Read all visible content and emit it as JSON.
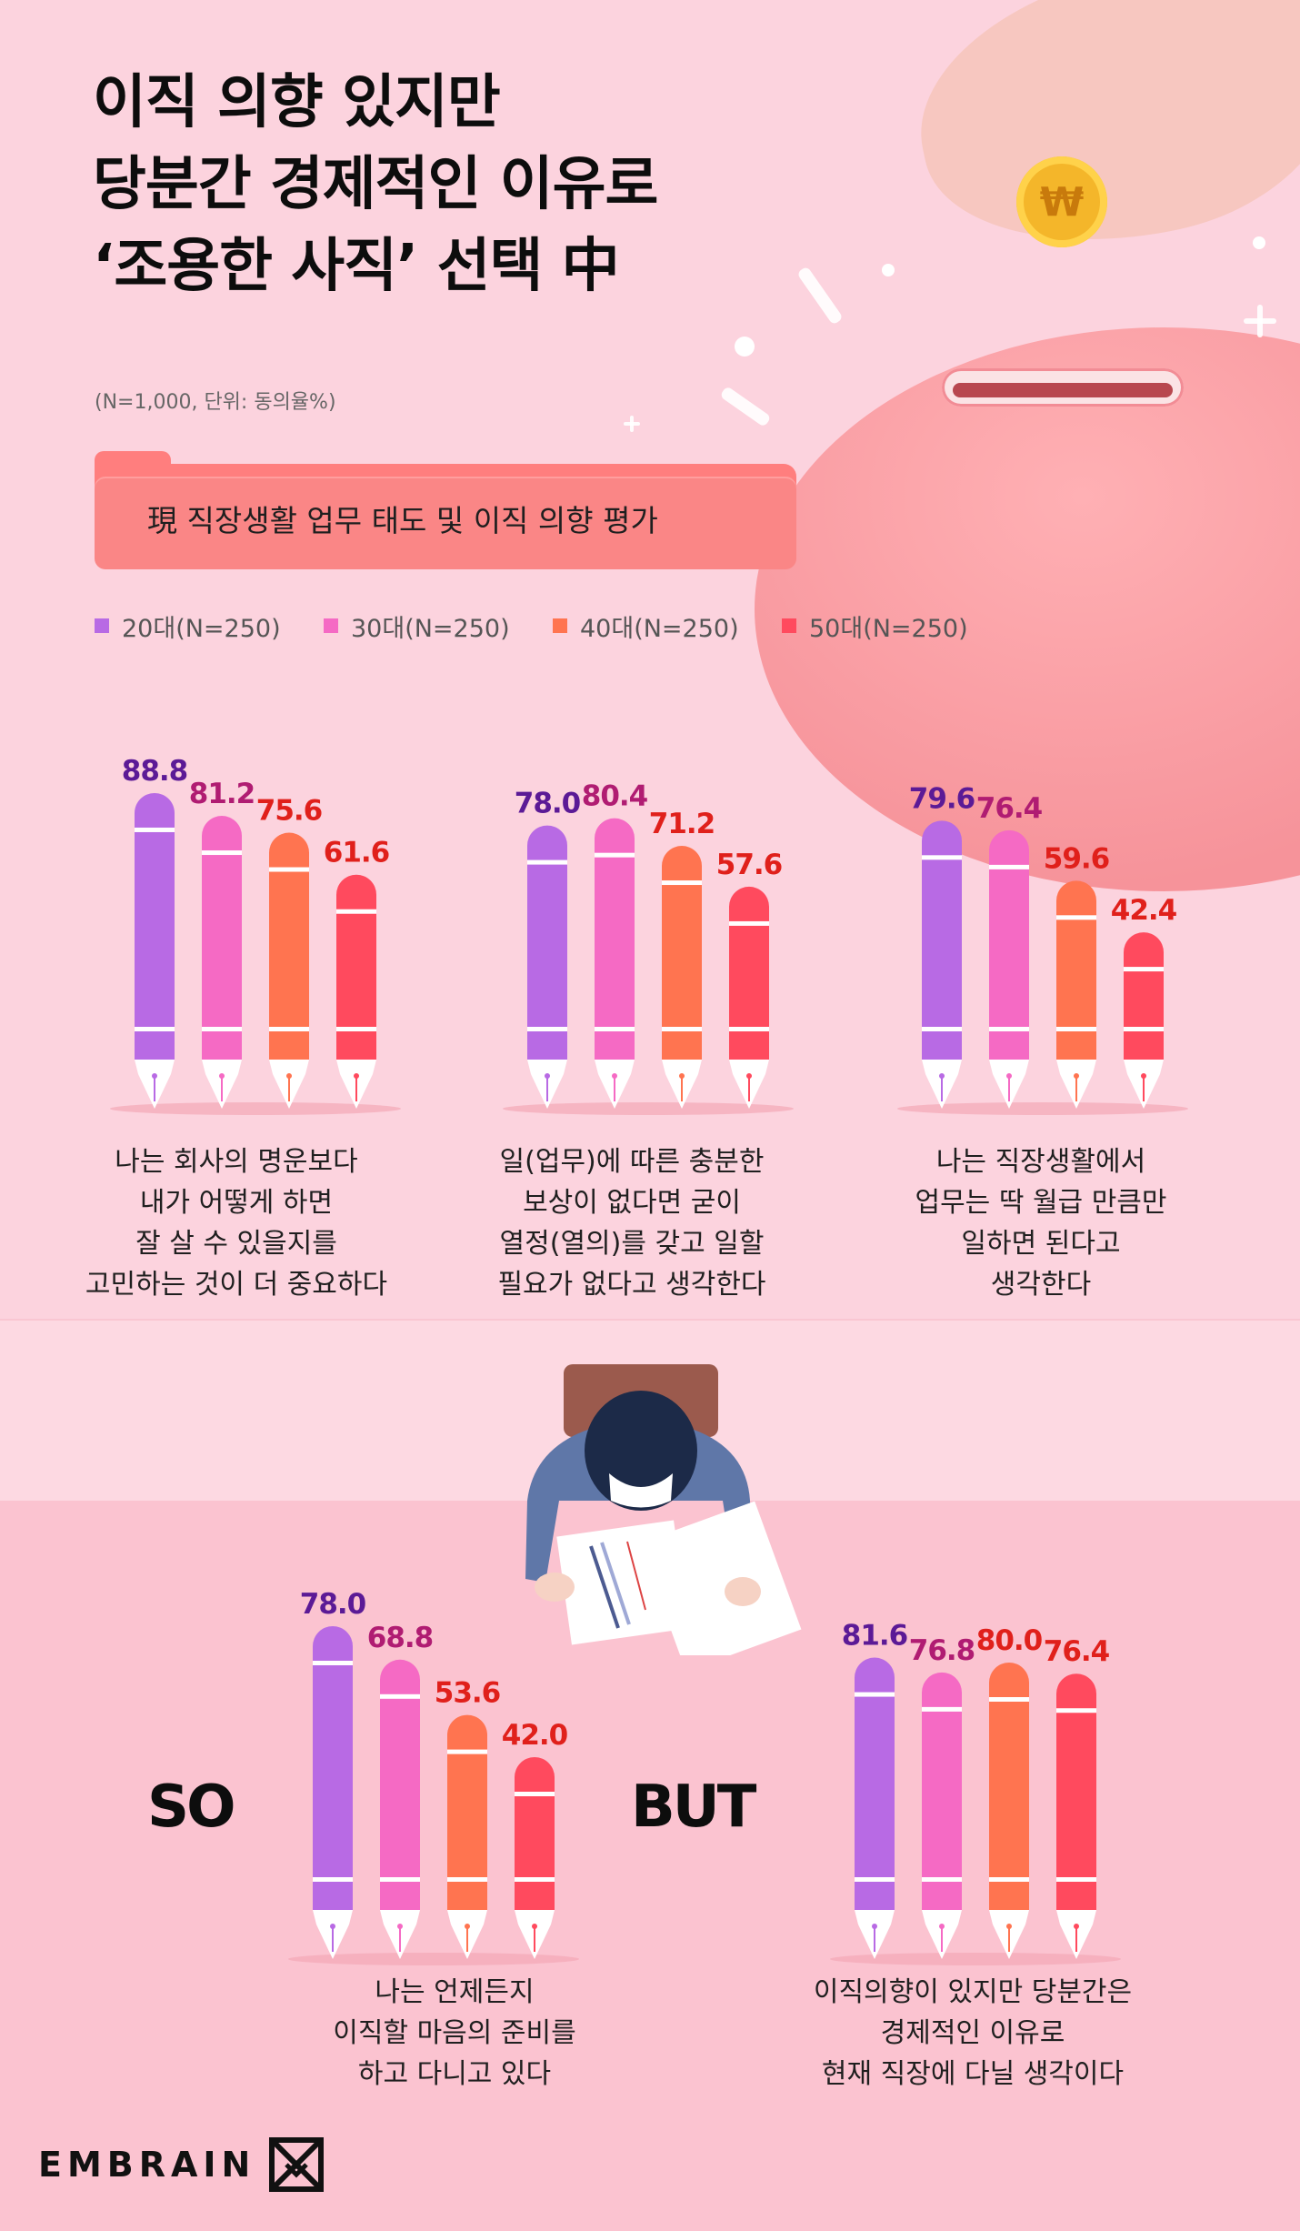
{
  "title_lines": [
    "이직 의향 있지만",
    "당분간 경제적인 이유로",
    "‘조용한 사직’ 선택 中"
  ],
  "subtitle": "(N=1,000, 단위: 동의율%)",
  "section_label": "現 직장생활 업무 태도 및 이직 의향 평가",
  "legend": [
    {
      "label": "20대(N=250)",
      "color": "#b86ae4"
    },
    {
      "label": "30대(N=250)",
      "color": "#f56ac4"
    },
    {
      "label": "40대(N=250)",
      "color": "#ff7450"
    },
    {
      "label": "50대(N=250)",
      "color": "#ff4a5e"
    }
  ],
  "value_label_colors": [
    "#5b1a96",
    "#b01c72",
    "#e0201b",
    "#e0201b"
  ],
  "so_label": "SO",
  "but_label": "BUT",
  "brand": "EMBRAIN",
  "coin_symbol": "₩",
  "chart_data": {
    "type": "bar",
    "unit": "%",
    "series_names": [
      "20대(N=250)",
      "30대(N=250)",
      "40대(N=250)",
      "50대(N=250)"
    ],
    "groups": [
      {
        "caption": [
          "나는 회사의 명운보다",
          "내가 어떻게 하면",
          "잘 살 수 있을지를",
          "고민하는 것이 더 중요하다"
        ],
        "values": [
          88.8,
          81.2,
          75.6,
          61.6
        ]
      },
      {
        "caption": [
          "일(업무)에 따른 충분한",
          "보상이 없다면 굳이",
          "열정(열의)를 갖고 일할",
          "필요가 없다고 생각한다"
        ],
        "values": [
          78.0,
          80.4,
          71.2,
          57.6
        ]
      },
      {
        "caption": [
          "나는 직장생활에서",
          "업무는 딱 월급 만큼만",
          "일하면 된다고",
          "생각한다"
        ],
        "values": [
          79.6,
          76.4,
          59.6,
          42.4
        ]
      },
      {
        "caption": [
          "나는 언제든지",
          "이직할 마음의 준비를",
          "하고 다니고 있다"
        ],
        "values": [
          78.0,
          68.8,
          53.6,
          42.0
        ]
      },
      {
        "caption": [
          "이직의향이 있지만 당분간은",
          "경제적인 이유로",
          "현재 직장에 다닐 생각이다"
        ],
        "values": [
          81.6,
          76.8,
          80.0,
          76.4
        ]
      }
    ]
  }
}
